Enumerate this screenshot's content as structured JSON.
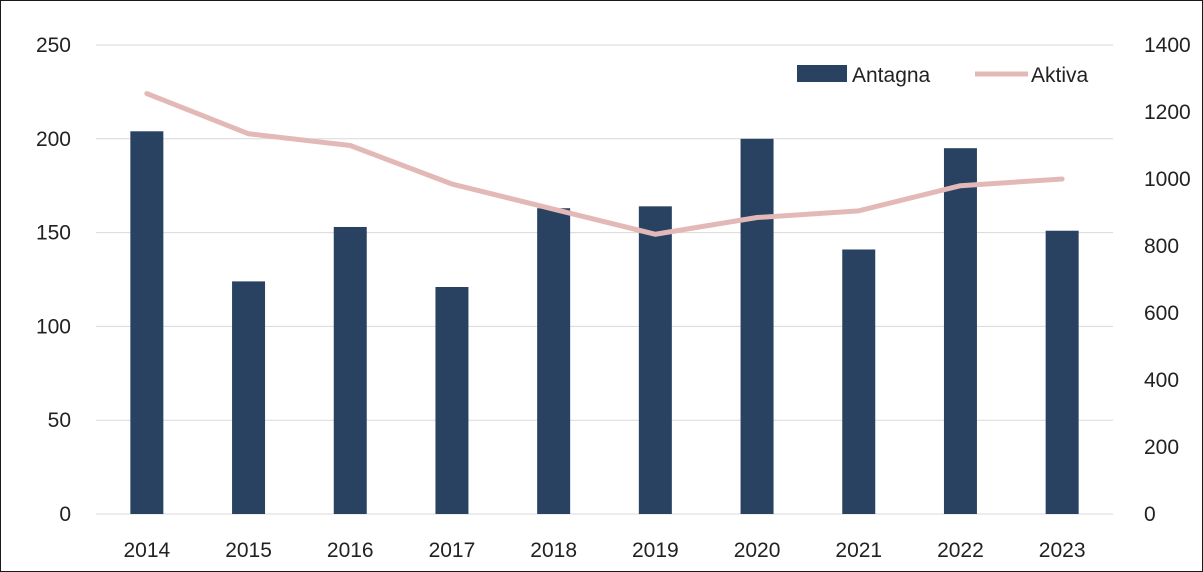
{
  "chart_data": {
    "type": "bar",
    "categories": [
      "2014",
      "2015",
      "2016",
      "2017",
      "2018",
      "2019",
      "2020",
      "2021",
      "2022",
      "2023"
    ],
    "series": [
      {
        "name": "Antagna",
        "type": "bar",
        "axis": "left",
        "color": "#2a4262",
        "values": [
          204,
          124,
          153,
          121,
          163,
          164,
          200,
          141,
          195,
          151
        ]
      },
      {
        "name": "Aktiva",
        "type": "line",
        "axis": "right",
        "color": "#e3b9b7",
        "values": [
          1255,
          1135,
          1100,
          985,
          910,
          835,
          885,
          905,
          980,
          1000
        ]
      }
    ],
    "y_left": {
      "ylim": [
        0,
        250
      ],
      "ticks": [
        "0",
        "50",
        "100",
        "150",
        "200",
        "250"
      ]
    },
    "y_right": {
      "ylim": [
        0,
        1400
      ],
      "ticks": [
        "0",
        "200",
        "400",
        "600",
        "800",
        "1000",
        "1200",
        "1400"
      ]
    },
    "grid": true,
    "legend_position": "top-right",
    "gridline_color": "#d9d9d9"
  }
}
